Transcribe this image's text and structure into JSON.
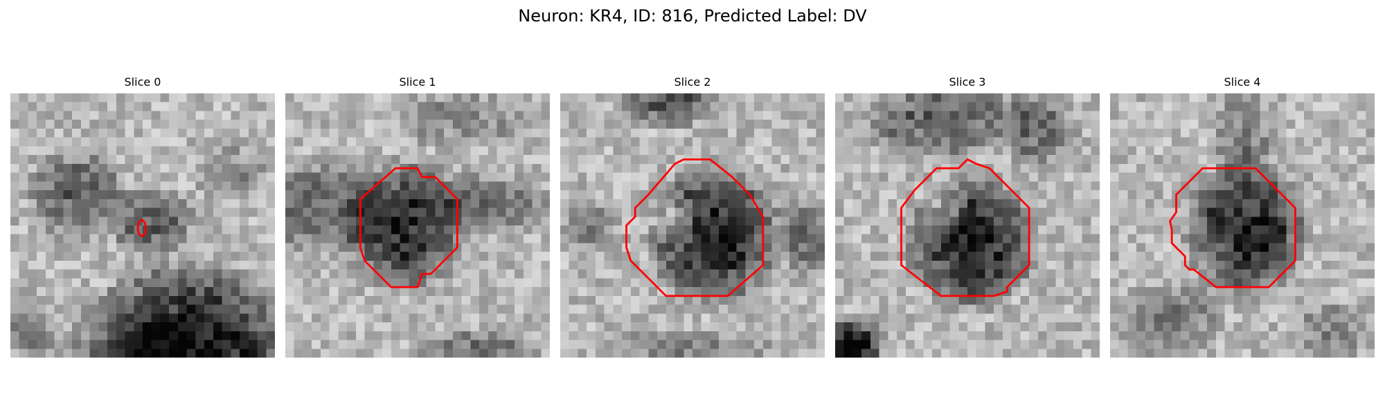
{
  "figure": {
    "title": "Neuron: KR4, ID: 816, Predicted Label: DV"
  },
  "panels": [
    {
      "title": "Slice 0",
      "image": "grayscale-microscopy-crop",
      "outline": "tiny-red-ellipse"
    },
    {
      "title": "Slice 1",
      "image": "grayscale-microscopy-crop",
      "outline": "red-polygon-contour"
    },
    {
      "title": "Slice 2",
      "image": "grayscale-microscopy-crop",
      "outline": "red-polygon-contour"
    },
    {
      "title": "Slice 3",
      "image": "grayscale-microscopy-crop",
      "outline": "red-polygon-contour"
    },
    {
      "title": "Slice 4",
      "image": "grayscale-microscopy-crop",
      "outline": "red-polygon-contour"
    }
  ],
  "colors": {
    "outline": "#ff0000",
    "background": "#ffffff"
  }
}
